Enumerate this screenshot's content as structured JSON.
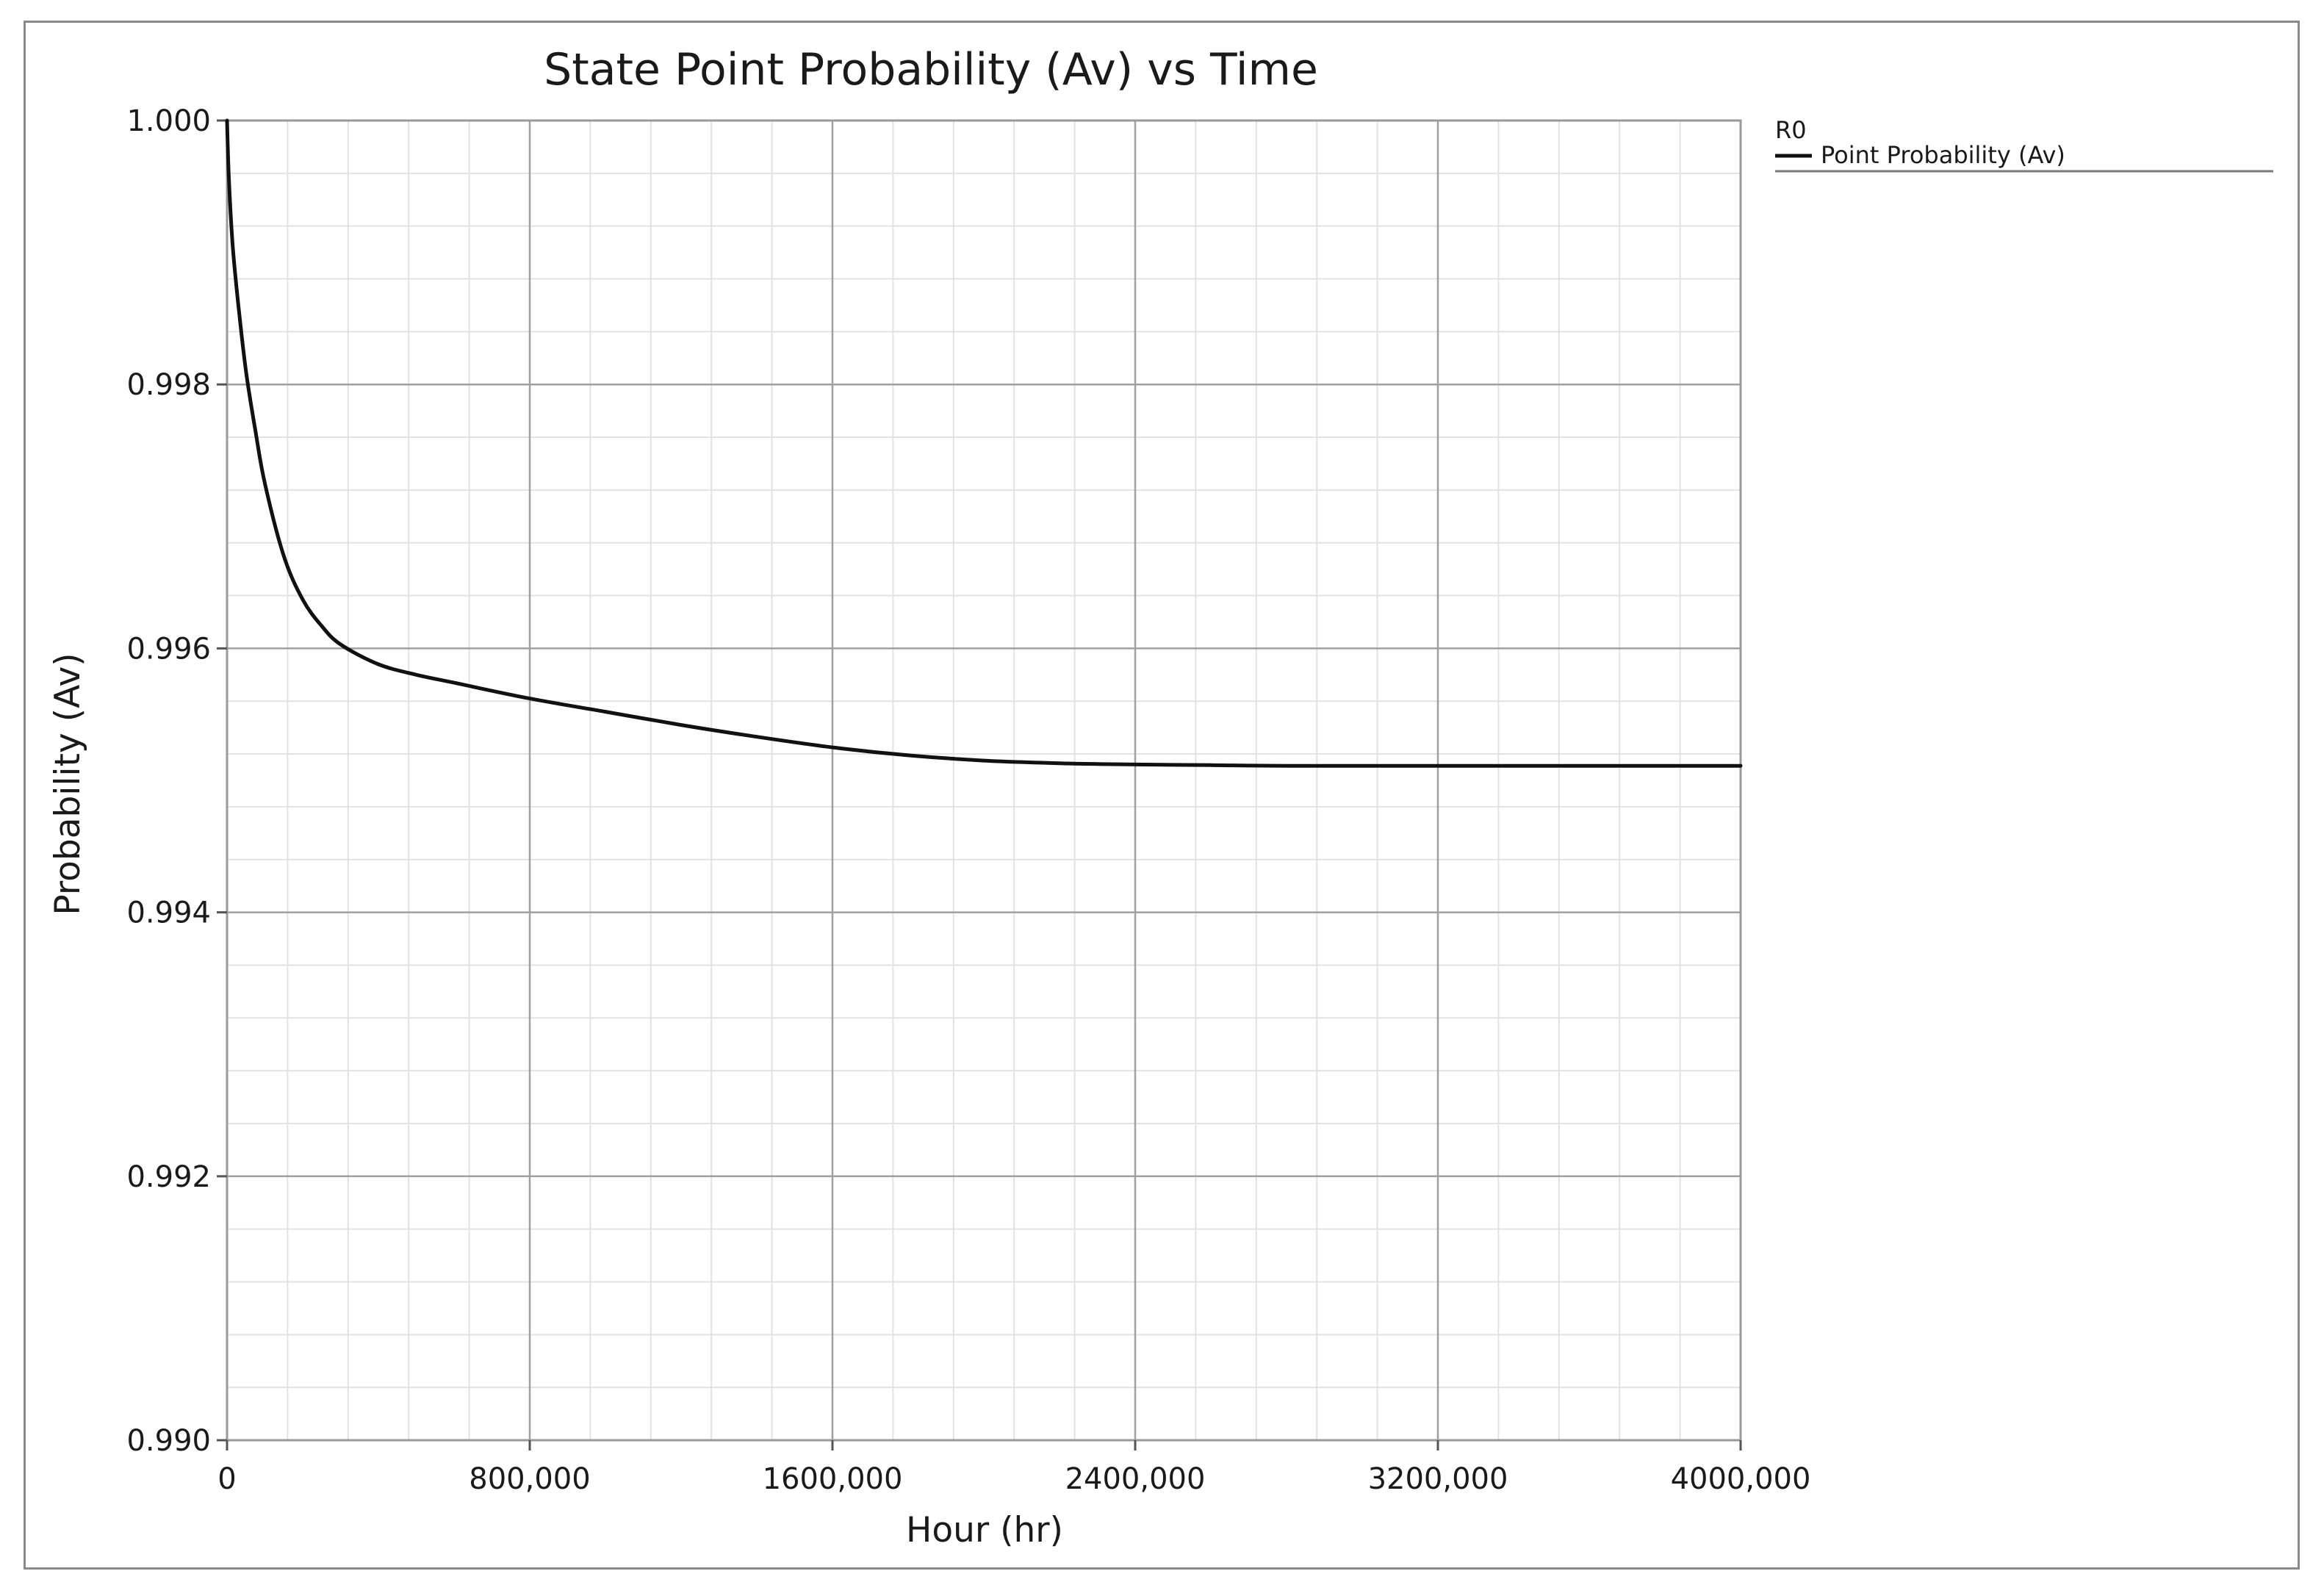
{
  "chart_data": {
    "type": "line",
    "title": "State Point Probability (Av) vs Time",
    "xlabel": "Hour (hr)",
    "ylabel": "Probability (Av)",
    "xlim": [
      0,
      4000000
    ],
    "ylim": [
      0.99,
      1.0
    ],
    "x_ticks": [
      0,
      800000,
      1600000,
      2400000,
      3200000,
      4000000
    ],
    "x_tick_labels": [
      "0",
      "800,000",
      "1600,000",
      "2400,000",
      "3200,000",
      "4000,000"
    ],
    "y_ticks": [
      0.99,
      0.992,
      0.994,
      0.996,
      0.998,
      1.0
    ],
    "y_tick_labels": [
      "0.990",
      "0.992",
      "0.994",
      "0.996",
      "0.998",
      "1.000"
    ],
    "x_minor_step": 160000,
    "y_minor_step": 0.0004,
    "grid": true,
    "legend": {
      "position": "top-right",
      "header": "R0"
    },
    "series": [
      {
        "name": "Point Probability (Av)",
        "color": "#111111",
        "x": [
          0,
          5000,
          15000,
          30000,
          50000,
          75000,
          100000,
          150000,
          200000,
          250000,
          300000,
          400000,
          500000,
          600000,
          800000,
          1000000,
          1200000,
          1400000,
          1600000,
          1800000,
          2000000,
          2200000,
          2400000,
          2600000,
          2800000,
          3200000,
          3600000,
          4000000
        ],
        "y": [
          1.0,
          0.99955,
          0.99905,
          0.9986,
          0.9981,
          0.99765,
          0.99725,
          0.9967,
          0.99637,
          0.99617,
          0.99603,
          0.99588,
          0.9958,
          0.99574,
          0.99562,
          0.99552,
          0.99542,
          0.99533,
          0.99525,
          0.99519,
          0.99515,
          0.99513,
          0.99512,
          0.995115,
          0.99511,
          0.99511,
          0.99511,
          0.99511
        ]
      }
    ]
  }
}
